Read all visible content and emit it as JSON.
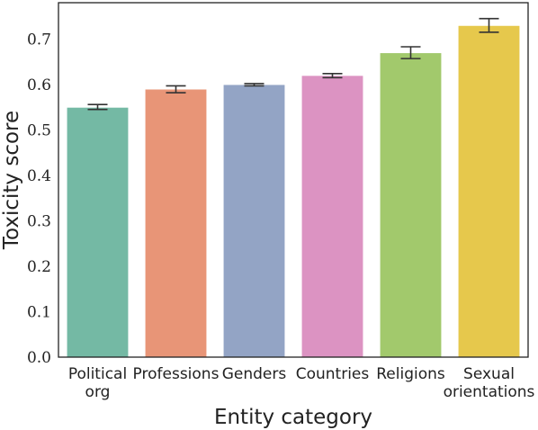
{
  "chart_data": {
    "type": "bar",
    "title": "",
    "xlabel": "Entity category",
    "ylabel": "Toxicity score",
    "categories": [
      [
        "Political",
        "org"
      ],
      [
        "Professions"
      ],
      [
        "Genders"
      ],
      [
        "Countries"
      ],
      [
        "Religions"
      ],
      [
        "Sexual",
        "orientations"
      ]
    ],
    "values": [
      0.549,
      0.589,
      0.599,
      0.619,
      0.669,
      0.729
    ],
    "error_low": [
      0.545,
      0.582,
      0.597,
      0.615,
      0.657,
      0.715
    ],
    "error_high": [
      0.556,
      0.597,
      0.602,
      0.624,
      0.683,
      0.745
    ],
    "colors": [
      "#74b9a4",
      "#e89577",
      "#93a4c5",
      "#dc93c2",
      "#a2c96c",
      "#e6c84c"
    ],
    "yticks": [
      "0.0",
      "0.1",
      "0.2",
      "0.3",
      "0.4",
      "0.5",
      "0.6",
      "0.7"
    ],
    "ylim": [
      0,
      0.78
    ],
    "grid": false,
    "legend": "none"
  }
}
